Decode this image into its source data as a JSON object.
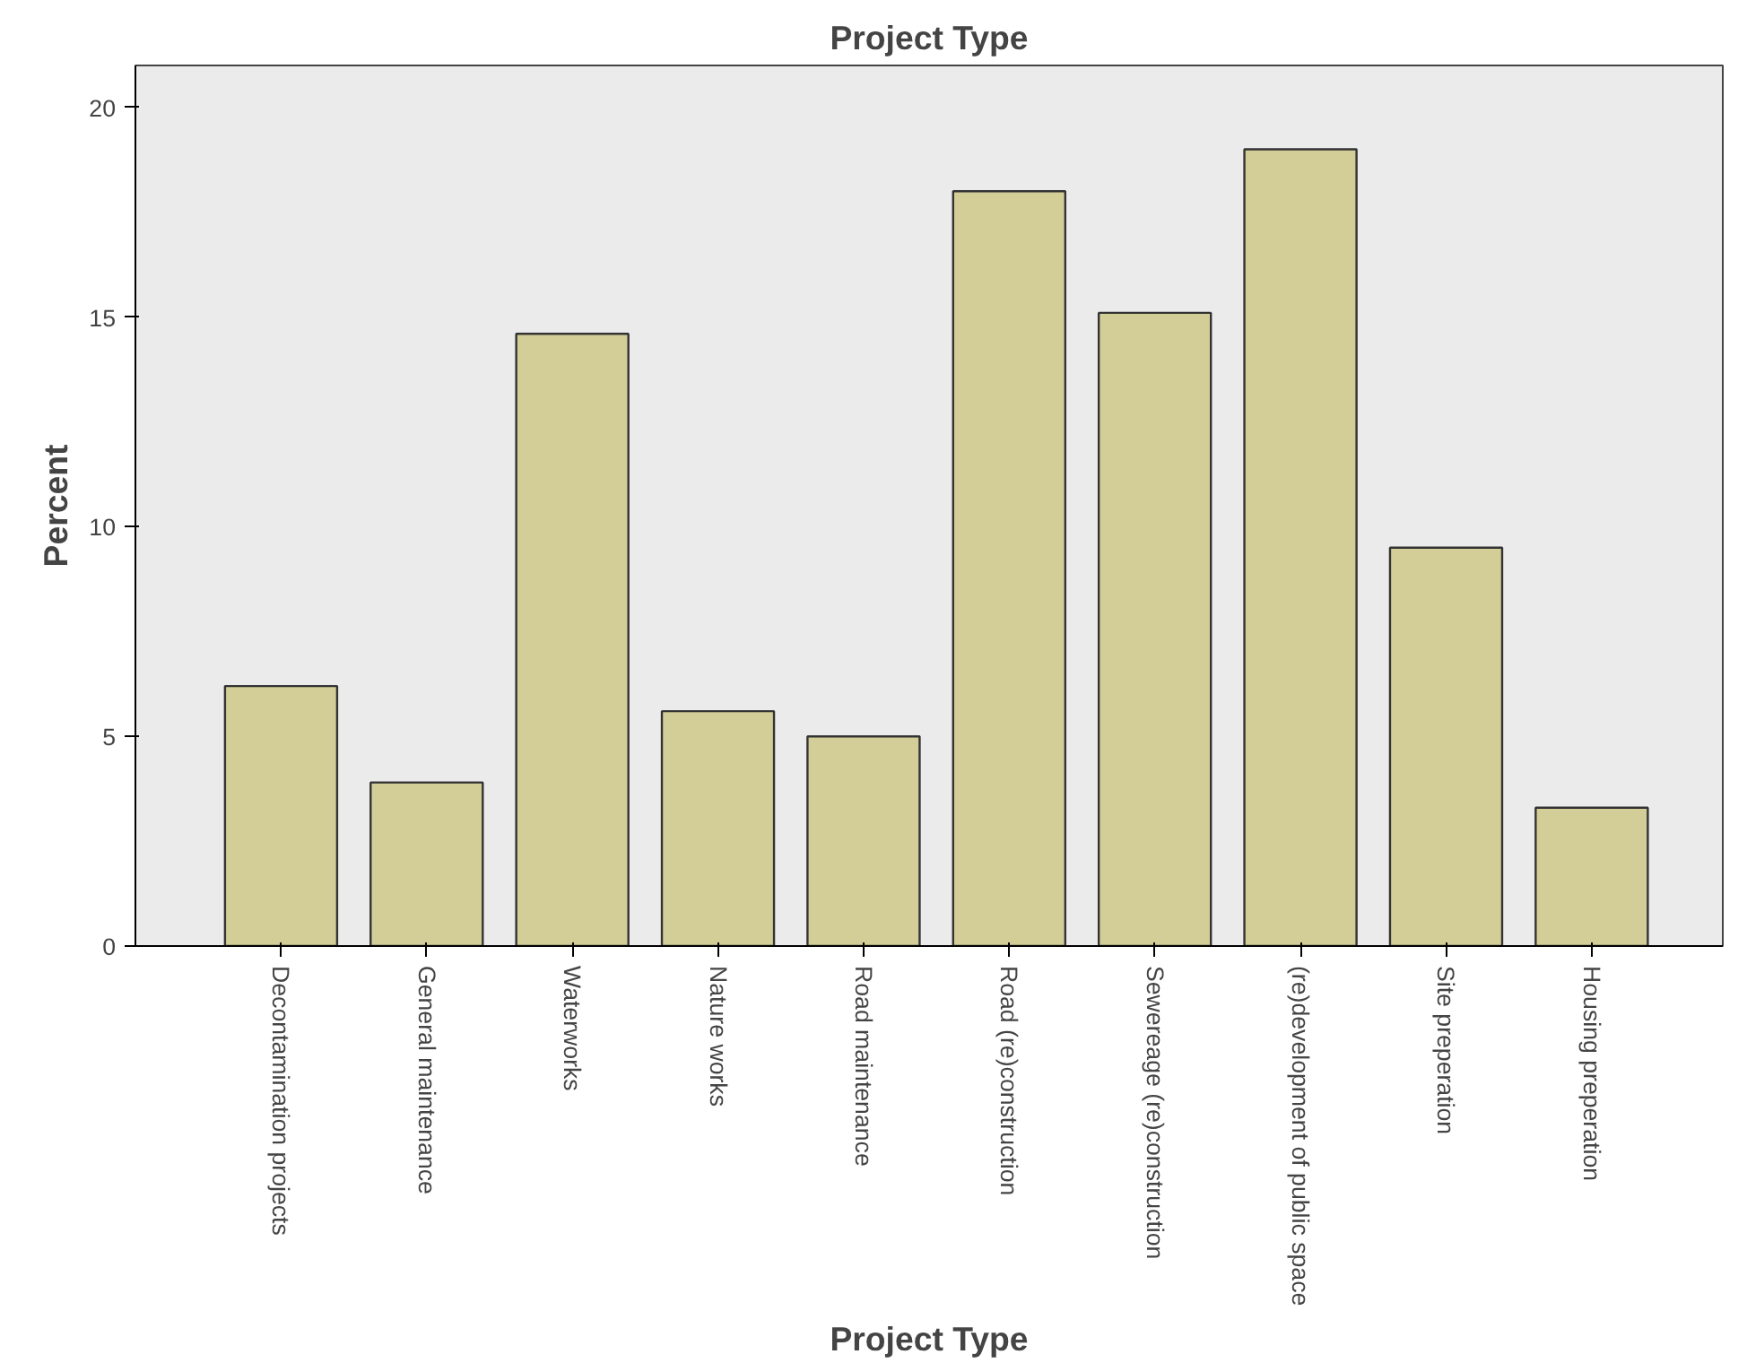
{
  "chart_data": {
    "type": "bar",
    "title": "Project Type",
    "xlabel": "Project Type",
    "ylabel": "Percent",
    "categories": [
      "Decontamination projects",
      "General maintenance",
      "Waterworks",
      "Nature works",
      "Road maintenance",
      "Road (re)construction",
      "Sewereage (re)construction",
      "(re)development of public space",
      "Site preperation",
      "Housing preperation"
    ],
    "values": [
      6.2,
      3.9,
      14.6,
      5.6,
      5.0,
      18.0,
      15.1,
      19.0,
      9.5,
      3.3
    ],
    "color": "#d3ce97",
    "ylim": [
      0,
      21
    ],
    "yticks": [
      0,
      5,
      10,
      15,
      20
    ],
    "grid": false
  }
}
